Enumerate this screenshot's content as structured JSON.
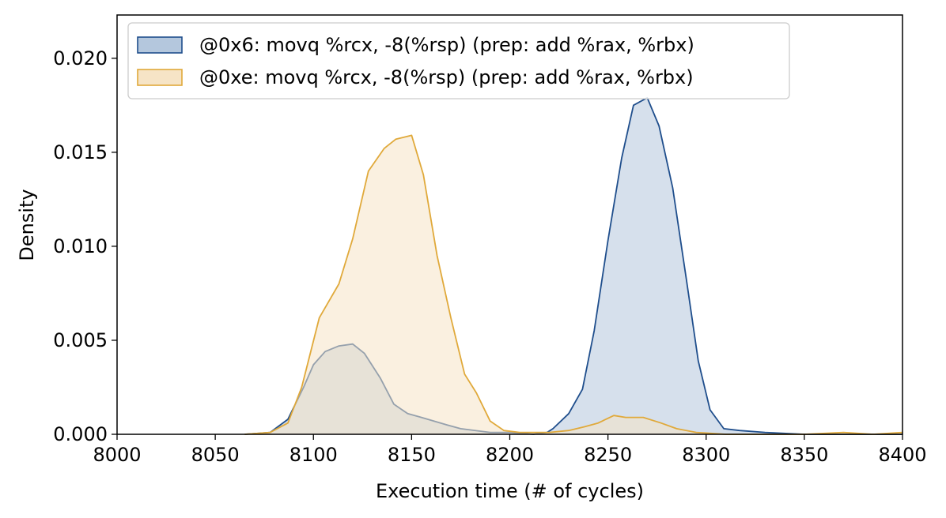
{
  "chart_data": {
    "type": "area",
    "xlabel": "Execution time (# of cycles)",
    "ylabel": "Density",
    "xlim": [
      8000,
      8400
    ],
    "ylim": [
      0,
      0.0223
    ],
    "x_ticks": [
      "8000",
      "8050",
      "8100",
      "8150",
      "8200",
      "8250",
      "8300",
      "8350",
      "8400"
    ],
    "y_ticks": [
      "0.000",
      "0.005",
      "0.010",
      "0.015",
      "0.020"
    ],
    "grid": false,
    "legend_position": "top-left",
    "series": [
      {
        "name": "@0x6: movq %rcx, -8(%rsp) (prep: add %rax, %rbx)",
        "color": "#1f4e8c",
        "fill": "#b4c7dd",
        "points": [
          [
            8065,
            0.0
          ],
          [
            8078,
            0.0001
          ],
          [
            8087,
            0.0008
          ],
          [
            8095,
            0.0025
          ],
          [
            8100,
            0.0037
          ],
          [
            8106,
            0.0044
          ],
          [
            8113,
            0.0047
          ],
          [
            8120,
            0.0048
          ],
          [
            8126,
            0.0043
          ],
          [
            8134,
            0.003
          ],
          [
            8141,
            0.0016
          ],
          [
            8148,
            0.0011
          ],
          [
            8155,
            0.0009
          ],
          [
            8168,
            0.0005
          ],
          [
            8175,
            0.0003
          ],
          [
            8190,
            0.0001
          ],
          [
            8200,
            0.0001
          ],
          [
            8212,
            0.0
          ],
          [
            8219,
            0.0001
          ],
          [
            8222,
            0.0003
          ],
          [
            8230,
            0.0011
          ],
          [
            8237,
            0.0024
          ],
          [
            8243,
            0.0055
          ],
          [
            8250,
            0.0103
          ],
          [
            8257,
            0.0147
          ],
          [
            8263,
            0.0175
          ],
          [
            8270,
            0.0179
          ],
          [
            8276,
            0.0164
          ],
          [
            8283,
            0.0131
          ],
          [
            8290,
            0.0082
          ],
          [
            8296,
            0.0039
          ],
          [
            8302,
            0.0013
          ],
          [
            8309,
            0.0003
          ],
          [
            8317,
            0.0002
          ],
          [
            8330,
            0.0001
          ],
          [
            8350,
            0.0
          ],
          [
            8400,
            0.0
          ]
        ]
      },
      {
        "name": "@0xe: movq %rcx, -8(%rsp) (prep: add %rax, %rbx)",
        "color": "#e0a93a",
        "fill": "#f6e4c6",
        "points": [
          [
            8065,
            0.0
          ],
          [
            8078,
            0.0001
          ],
          [
            8087,
            0.0006
          ],
          [
            8094,
            0.0025
          ],
          [
            8103,
            0.0062
          ],
          [
            8113,
            0.008
          ],
          [
            8120,
            0.0104
          ],
          [
            8128,
            0.014
          ],
          [
            8136,
            0.0152
          ],
          [
            8142,
            0.0157
          ],
          [
            8150,
            0.0159
          ],
          [
            8156,
            0.0138
          ],
          [
            8163,
            0.0095
          ],
          [
            8170,
            0.0062
          ],
          [
            8177,
            0.0032
          ],
          [
            8183,
            0.0022
          ],
          [
            8190,
            0.0007
          ],
          [
            8197,
            0.0002
          ],
          [
            8205,
            0.0001
          ],
          [
            8220,
            0.0001
          ],
          [
            8230,
            0.0002
          ],
          [
            8238,
            0.0004
          ],
          [
            8245,
            0.0006
          ],
          [
            8253,
            0.001
          ],
          [
            8259,
            0.0009
          ],
          [
            8268,
            0.0009
          ],
          [
            8277,
            0.0006
          ],
          [
            8285,
            0.0003
          ],
          [
            8295,
            0.0001
          ],
          [
            8310,
            0.0
          ],
          [
            8350,
            0.0
          ],
          [
            8370,
            0.0001
          ],
          [
            8385,
            0.0
          ],
          [
            8400,
            0.0001
          ]
        ]
      }
    ]
  }
}
